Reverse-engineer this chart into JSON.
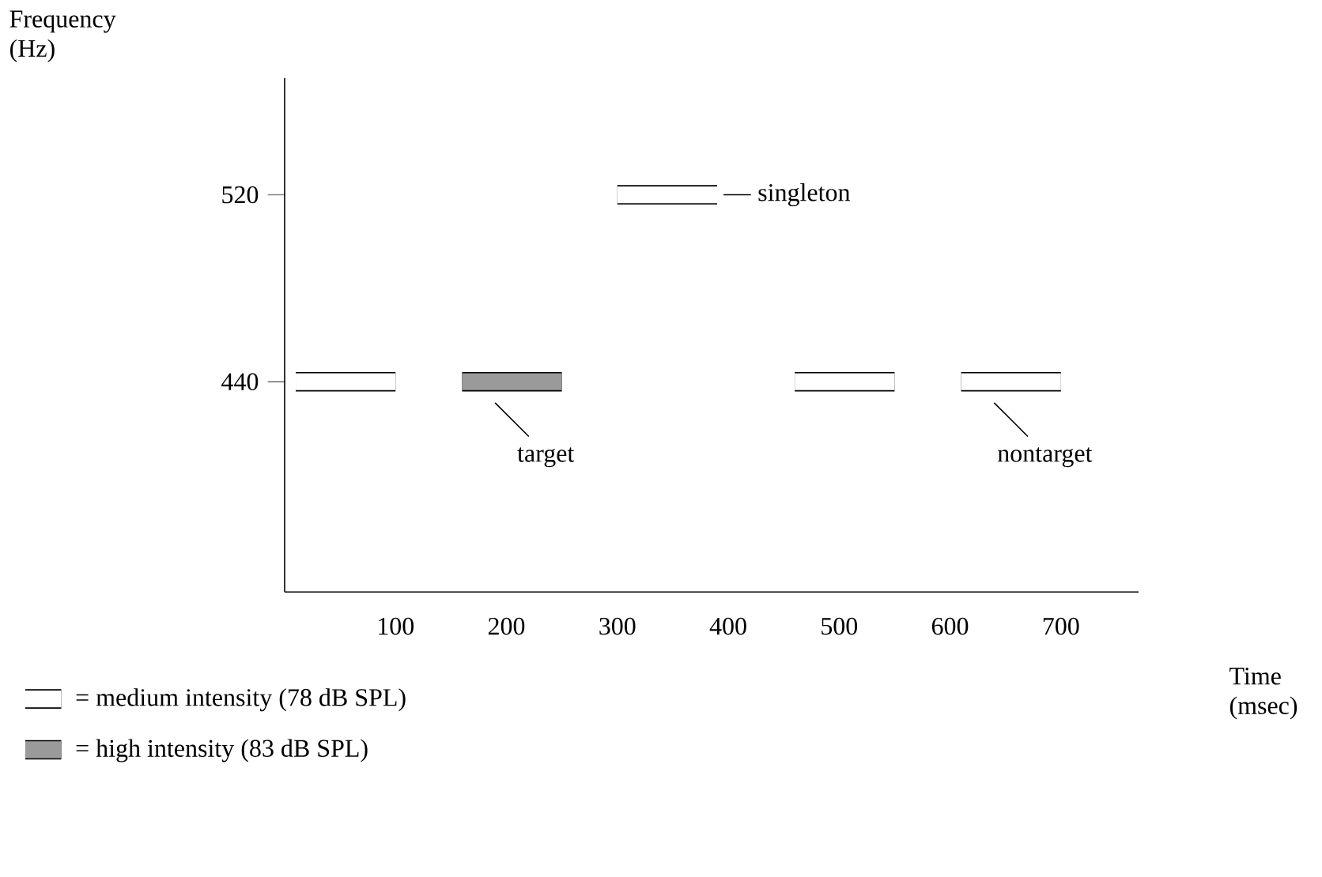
{
  "chart_data": {
    "type": "line",
    "xlabel": "Time (msec)",
    "ylabel": "Frequency (Hz)",
    "xlim": [
      0,
      770
    ],
    "ylim": [
      350,
      570
    ],
    "xticks": [
      100,
      200,
      300,
      400,
      500,
      600,
      700
    ],
    "yticks": [
      440,
      520
    ],
    "series": [
      {
        "name": "= medium intensity (78 dB SPL)",
        "color": "#ffffff",
        "x": [
          10,
          100,
          null,
          300,
          390,
          null,
          460,
          550,
          null,
          610,
          700
        ],
        "values": [
          440,
          440,
          null,
          520,
          520,
          null,
          440,
          440,
          null,
          440,
          440
        ]
      },
      {
        "name": "= high intensity (83 dB SPL)",
        "color": "#9a9a9a",
        "x": [
          160,
          250
        ],
        "values": [
          440,
          440
        ]
      }
    ],
    "annotations": [
      {
        "text": "singleton",
        "x": 390,
        "y": 520
      },
      {
        "text": "target",
        "x": 205,
        "y": 440
      },
      {
        "text": "nontarget",
        "x": 655,
        "y": 440
      }
    ],
    "legend": "bottom left"
  }
}
